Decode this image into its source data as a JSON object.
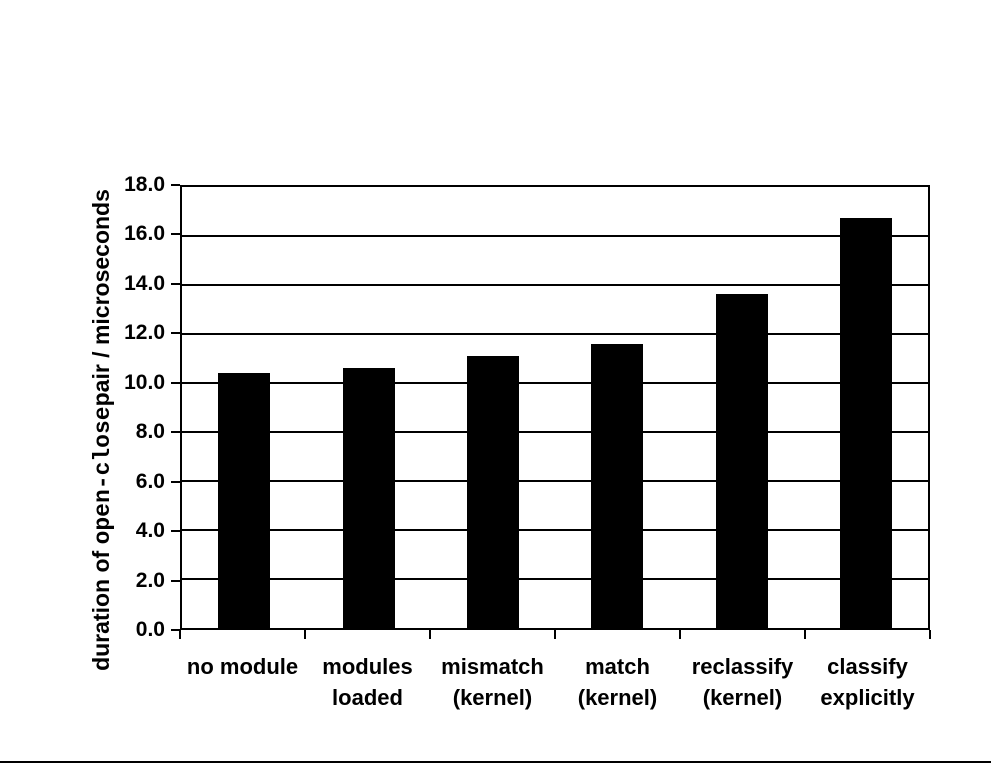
{
  "chart_data": {
    "type": "bar",
    "title": "",
    "categories": [
      [
        "no module"
      ],
      [
        "modules",
        "loaded"
      ],
      [
        "mismatch",
        "(kernel)"
      ],
      [
        "match",
        "(kernel)"
      ],
      [
        "reclassify",
        "(kernel)"
      ],
      [
        "classify",
        "explicitly"
      ]
    ],
    "values": [
      10.4,
      10.6,
      11.1,
      11.6,
      13.65,
      16.75
    ],
    "ylabel_parts": {
      "prefix": "duration of ",
      "mono": "open-close",
      "suffix": "pair / microseconds"
    },
    "ylabel_full": "duration of open-closepair / microseconds",
    "xlabel": "",
    "ylim": [
      0,
      18
    ],
    "ytick_step": 2.0,
    "ytick_labels": [
      "18.0",
      "16.0",
      "14.0",
      "12.0",
      "10.0",
      "8.0",
      "6.0",
      "4.0",
      "2.0",
      "0.0"
    ],
    "bar_color": "#000000",
    "background_color": "#ffffff",
    "grid": true,
    "legend_position": "none"
  }
}
